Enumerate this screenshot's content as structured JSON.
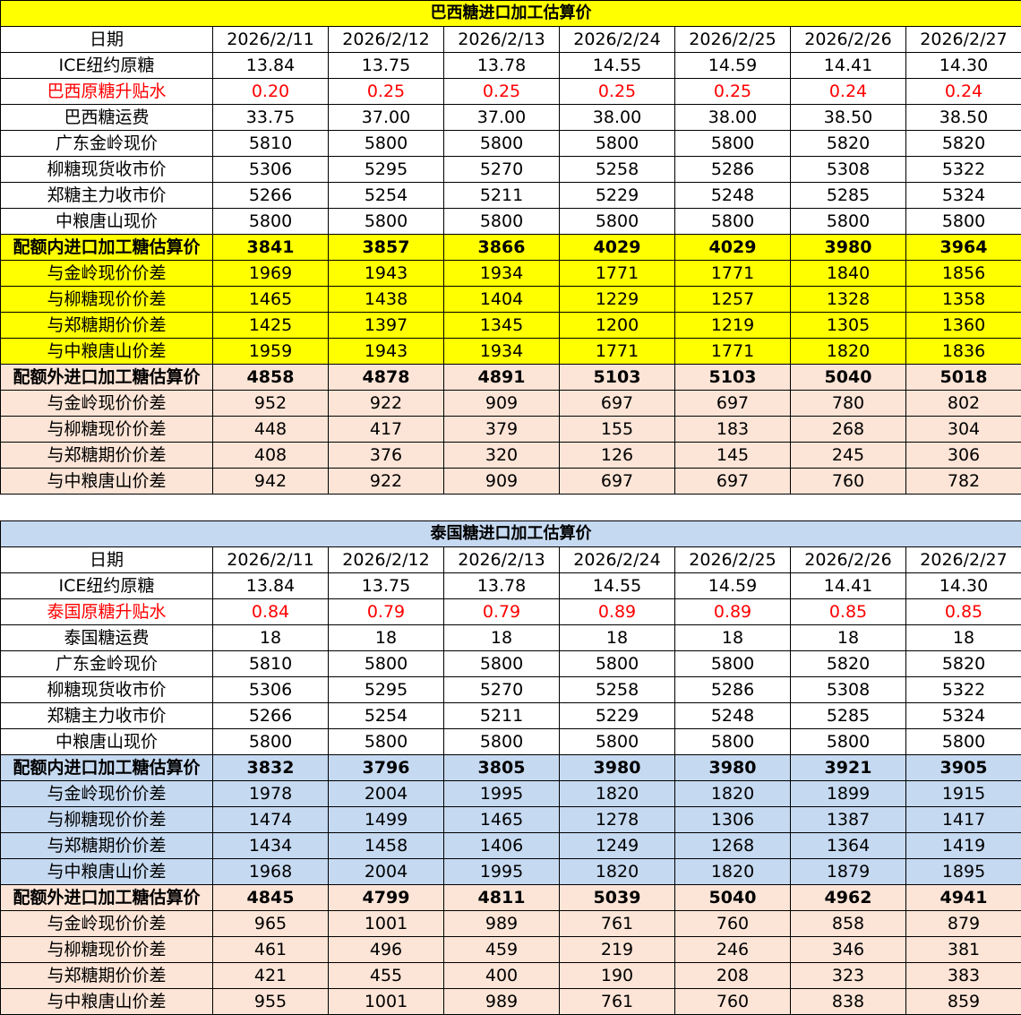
{
  "tables": [
    {
      "id": "brazil",
      "title": "巴西糖进口加工估算价",
      "highlight_color": "#FFFF00",
      "rows": [
        {
          "label": "日期",
          "style": "normal",
          "values": [
            "2026/2/11",
            "2026/2/12",
            "2026/2/13",
            "2026/2/24",
            "2026/2/25",
            "2026/2/26",
            "2026/2/27"
          ]
        },
        {
          "label": "ICE纽约原糖",
          "style": "normal",
          "values": [
            "13.84",
            "13.75",
            "13.78",
            "14.55",
            "14.59",
            "14.41",
            "14.30"
          ]
        },
        {
          "label": "巴西原糖升贴水",
          "style": "red",
          "values": [
            "0.20",
            "0.25",
            "0.25",
            "0.25",
            "0.25",
            "0.24",
            "0.24"
          ]
        },
        {
          "label": "巴西糖运费",
          "style": "normal",
          "values": [
            "33.75",
            "37.00",
            "37.00",
            "38.00",
            "38.00",
            "38.50",
            "38.50"
          ]
        },
        {
          "label": "广东金岭现价",
          "style": "normal",
          "values": [
            "5810",
            "5800",
            "5800",
            "5800",
            "5800",
            "5820",
            "5820"
          ]
        },
        {
          "label": "柳糖现货收市价",
          "style": "normal",
          "values": [
            "5306",
            "5295",
            "5270",
            "5258",
            "5286",
            "5308",
            "5322"
          ]
        },
        {
          "label": "郑糖主力收市价",
          "style": "normal",
          "values": [
            "5266",
            "5254",
            "5211",
            "5229",
            "5248",
            "5285",
            "5324"
          ]
        },
        {
          "label": "中粮唐山现价",
          "style": "normal",
          "values": [
            "5800",
            "5800",
            "5800",
            "5800",
            "5800",
            "5800",
            "5800"
          ]
        },
        {
          "label": "配额内进口加工糖估算价",
          "style": "hl bold",
          "values": [
            "3841",
            "3857",
            "3866",
            "4029",
            "4029",
            "3980",
            "3964"
          ]
        },
        {
          "label": "与金岭现价价差",
          "style": "hl",
          "values": [
            "1969",
            "1943",
            "1934",
            "1771",
            "1771",
            "1840",
            "1856"
          ]
        },
        {
          "label": "与柳糖现价价差",
          "style": "hl",
          "values": [
            "1465",
            "1438",
            "1404",
            "1229",
            "1257",
            "1328",
            "1358"
          ]
        },
        {
          "label": "与郑糖期价价差",
          "style": "hl",
          "values": [
            "1425",
            "1397",
            "1345",
            "1200",
            "1219",
            "1305",
            "1360"
          ]
        },
        {
          "label": "与中粮唐山价差",
          "style": "hl",
          "values": [
            "1959",
            "1943",
            "1934",
            "1771",
            "1771",
            "1820",
            "1836"
          ]
        },
        {
          "label": "配额外进口加工糖估算价",
          "style": "peach bold",
          "values": [
            "4858",
            "4878",
            "4891",
            "5103",
            "5103",
            "5040",
            "5018"
          ]
        },
        {
          "label": "与金岭现价价差",
          "style": "peach",
          "values": [
            "952",
            "922",
            "909",
            "697",
            "697",
            "780",
            "802"
          ]
        },
        {
          "label": "与柳糖现价价差",
          "style": "peach",
          "values": [
            "448",
            "417",
            "379",
            "155",
            "183",
            "268",
            "304"
          ]
        },
        {
          "label": "与郑糖期价价差",
          "style": "peach",
          "values": [
            "408",
            "376",
            "320",
            "126",
            "145",
            "245",
            "306"
          ]
        },
        {
          "label": "与中粮唐山价差",
          "style": "peach",
          "values": [
            "942",
            "922",
            "909",
            "697",
            "697",
            "760",
            "782"
          ]
        }
      ]
    },
    {
      "id": "thai",
      "title": "泰国糖进口加工估算价",
      "highlight_color": "#C5D9F1",
      "rows": [
        {
          "label": "日期",
          "style": "normal",
          "values": [
            "2026/2/11",
            "2026/2/12",
            "2026/2/13",
            "2026/2/24",
            "2026/2/25",
            "2026/2/26",
            "2026/2/27"
          ]
        },
        {
          "label": "ICE纽约原糖",
          "style": "normal",
          "values": [
            "13.84",
            "13.75",
            "13.78",
            "14.55",
            "14.59",
            "14.41",
            "14.30"
          ]
        },
        {
          "label": "泰国原糖升贴水",
          "style": "red",
          "values": [
            "0.84",
            "0.79",
            "0.79",
            "0.89",
            "0.89",
            "0.85",
            "0.85"
          ]
        },
        {
          "label": "泰国糖运费",
          "style": "normal",
          "values": [
            "18",
            "18",
            "18",
            "18",
            "18",
            "18",
            "18"
          ]
        },
        {
          "label": "广东金岭现价",
          "style": "normal",
          "values": [
            "5810",
            "5800",
            "5800",
            "5800",
            "5800",
            "5820",
            "5820"
          ]
        },
        {
          "label": "柳糖现货收市价",
          "style": "normal",
          "values": [
            "5306",
            "5295",
            "5270",
            "5258",
            "5286",
            "5308",
            "5322"
          ]
        },
        {
          "label": "郑糖主力收市价",
          "style": "normal",
          "values": [
            "5266",
            "5254",
            "5211",
            "5229",
            "5248",
            "5285",
            "5324"
          ]
        },
        {
          "label": "中粮唐山现价",
          "style": "normal",
          "values": [
            "5800",
            "5800",
            "5800",
            "5800",
            "5800",
            "5800",
            "5800"
          ]
        },
        {
          "label": "配额内进口加工糖估算价",
          "style": "hl bold",
          "values": [
            "3832",
            "3796",
            "3805",
            "3980",
            "3980",
            "3921",
            "3905"
          ]
        },
        {
          "label": "与金岭现价价差",
          "style": "hl",
          "values": [
            "1978",
            "2004",
            "1995",
            "1820",
            "1820",
            "1899",
            "1915"
          ]
        },
        {
          "label": "与柳糖现价价差",
          "style": "hl",
          "values": [
            "1474",
            "1499",
            "1465",
            "1278",
            "1306",
            "1387",
            "1417"
          ]
        },
        {
          "label": "与郑糖期价价差",
          "style": "hl",
          "values": [
            "1434",
            "1458",
            "1406",
            "1249",
            "1268",
            "1364",
            "1419"
          ]
        },
        {
          "label": "与中粮唐山价差",
          "style": "hl",
          "values": [
            "1968",
            "2004",
            "1995",
            "1820",
            "1820",
            "1879",
            "1895"
          ]
        },
        {
          "label": "配额外进口加工糖估算价",
          "style": "peach bold",
          "values": [
            "4845",
            "4799",
            "4811",
            "5039",
            "5040",
            "4962",
            "4941"
          ]
        },
        {
          "label": "与金岭现价价差",
          "style": "peach",
          "values": [
            "965",
            "1001",
            "989",
            "761",
            "760",
            "858",
            "879"
          ]
        },
        {
          "label": "与柳糖现价价差",
          "style": "peach",
          "values": [
            "461",
            "496",
            "459",
            "219",
            "246",
            "346",
            "381"
          ]
        },
        {
          "label": "与郑糖期价价差",
          "style": "peach",
          "values": [
            "421",
            "455",
            "400",
            "190",
            "208",
            "323",
            "383"
          ]
        },
        {
          "label": "与中粮唐山价差",
          "style": "peach",
          "values": [
            "955",
            "1001",
            "989",
            "761",
            "760",
            "838",
            "859"
          ]
        }
      ]
    }
  ]
}
